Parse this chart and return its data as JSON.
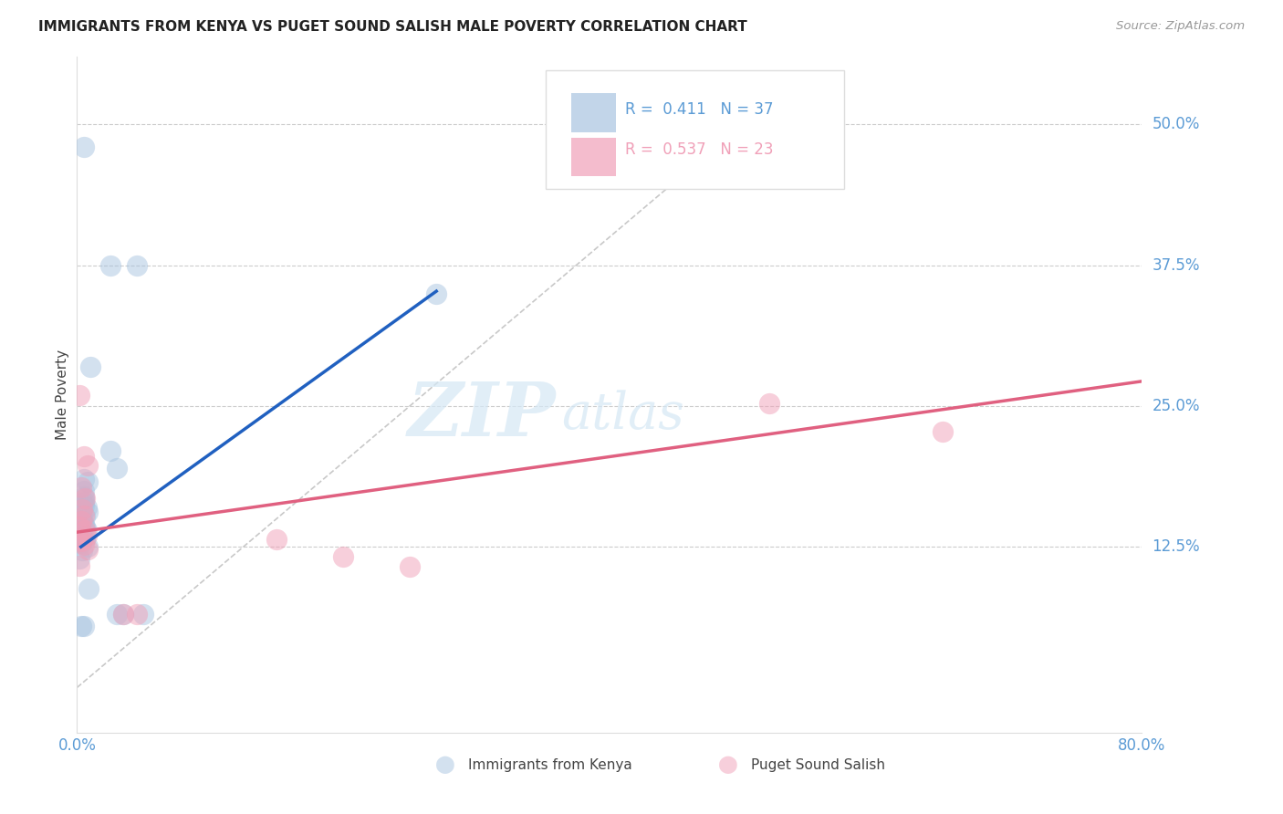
{
  "title": "IMMIGRANTS FROM KENYA VS PUGET SOUND SALISH MALE POVERTY CORRELATION CHART",
  "source": "Source: ZipAtlas.com",
  "ylabel": "Male Poverty",
  "y_tick_labels": [
    "12.5%",
    "25.0%",
    "37.5%",
    "50.0%"
  ],
  "y_tick_values": [
    0.125,
    0.25,
    0.375,
    0.5
  ],
  "x_tick_labels": [
    "0.0%",
    "80.0%"
  ],
  "x_tick_values": [
    0.0,
    0.8
  ],
  "xlim": [
    0.0,
    0.8
  ],
  "ylim": [
    -0.04,
    0.56
  ],
  "legend_r1": "R =  0.411",
  "legend_n1": "N = 37",
  "legend_r2": "R =  0.537",
  "legend_n2": "N = 23",
  "blue_color": "#A8C4E0",
  "pink_color": "#F0A0B8",
  "blue_scatter": [
    [
      0.005,
      0.48
    ],
    [
      0.025,
      0.375
    ],
    [
      0.045,
      0.375
    ],
    [
      0.27,
      0.35
    ],
    [
      0.01,
      0.285
    ],
    [
      0.025,
      0.21
    ],
    [
      0.03,
      0.195
    ],
    [
      0.005,
      0.185
    ],
    [
      0.008,
      0.183
    ],
    [
      0.005,
      0.175
    ],
    [
      0.005,
      0.17
    ],
    [
      0.005,
      0.168
    ],
    [
      0.005,
      0.165
    ],
    [
      0.005,
      0.162
    ],
    [
      0.007,
      0.16
    ],
    [
      0.008,
      0.156
    ],
    [
      0.003,
      0.155
    ],
    [
      0.006,
      0.152
    ],
    [
      0.004,
      0.15
    ],
    [
      0.003,
      0.148
    ],
    [
      0.005,
      0.145
    ],
    [
      0.006,
      0.143
    ],
    [
      0.007,
      0.14
    ],
    [
      0.003,
      0.138
    ],
    [
      0.004,
      0.135
    ],
    [
      0.006,
      0.132
    ],
    [
      0.002,
      0.13
    ],
    [
      0.003,
      0.128
    ],
    [
      0.008,
      0.125
    ],
    [
      0.004,
      0.122
    ],
    [
      0.002,
      0.115
    ],
    [
      0.009,
      0.088
    ],
    [
      0.03,
      0.065
    ],
    [
      0.035,
      0.065
    ],
    [
      0.05,
      0.065
    ],
    [
      0.003,
      0.055
    ],
    [
      0.005,
      0.055
    ]
  ],
  "pink_scatter": [
    [
      0.002,
      0.26
    ],
    [
      0.005,
      0.205
    ],
    [
      0.008,
      0.197
    ],
    [
      0.003,
      0.178
    ],
    [
      0.006,
      0.168
    ],
    [
      0.004,
      0.158
    ],
    [
      0.005,
      0.153
    ],
    [
      0.003,
      0.148
    ],
    [
      0.002,
      0.143
    ],
    [
      0.006,
      0.14
    ],
    [
      0.007,
      0.135
    ],
    [
      0.004,
      0.132
    ],
    [
      0.003,
      0.13
    ],
    [
      0.005,
      0.127
    ],
    [
      0.008,
      0.123
    ],
    [
      0.002,
      0.108
    ],
    [
      0.15,
      0.132
    ],
    [
      0.2,
      0.116
    ],
    [
      0.25,
      0.107
    ],
    [
      0.52,
      0.252
    ],
    [
      0.65,
      0.227
    ],
    [
      0.035,
      0.065
    ],
    [
      0.045,
      0.065
    ]
  ],
  "blue_line": [
    [
      0.003,
      0.125
    ],
    [
      0.27,
      0.352
    ]
  ],
  "pink_line": [
    [
      0.0,
      0.138
    ],
    [
      0.8,
      0.272
    ]
  ],
  "ref_line": [
    [
      0.0,
      0.0
    ],
    [
      0.52,
      0.52
    ]
  ],
  "watermark_text": "ZIP",
  "watermark_text2": "atlas",
  "background_color": "#FFFFFF",
  "title_fontsize": 11,
  "tick_color": "#5B9BD5",
  "label_color": "#444444",
  "legend_text_color": "#5B9BD5",
  "legend_box_color": "#E8E8E8"
}
